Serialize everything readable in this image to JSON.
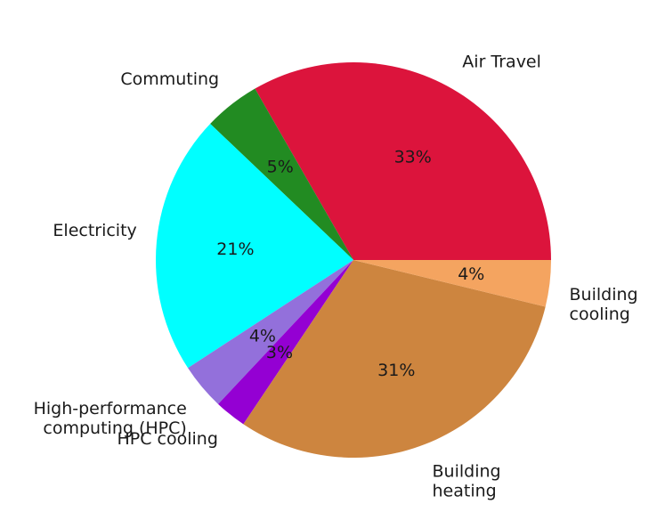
{
  "chart_data": {
    "type": "pie",
    "start_angle_deg": 0,
    "direction": "counterclockwise",
    "slices": [
      {
        "label": [
          "Air Travel"
        ],
        "pct_text": "33%",
        "value": 33.3,
        "color": "#dc143c"
      },
      {
        "label": [
          "Commuting"
        ],
        "pct_text": "5%",
        "value": 4.6,
        "color": "#228b22"
      },
      {
        "label": [
          "Electricity"
        ],
        "pct_text": "21%",
        "value": 21.3,
        "color": "#00ffff"
      },
      {
        "label": [
          "High-performance",
          "computing (HPC)"
        ],
        "pct_text": "4%",
        "value": 3.8,
        "color": "#9370db"
      },
      {
        "label": [
          "HPC cooling"
        ],
        "pct_text": "3%",
        "value": 2.6,
        "color": "#9400d3"
      },
      {
        "label": [
          "Building",
          "heating"
        ],
        "pct_text": "31%",
        "value": 30.6,
        "color": "#cd853f"
      },
      {
        "label": [
          "Building",
          "cooling"
        ],
        "pct_text": "4%",
        "value": 3.8,
        "color": "#f4a460"
      }
    ]
  }
}
